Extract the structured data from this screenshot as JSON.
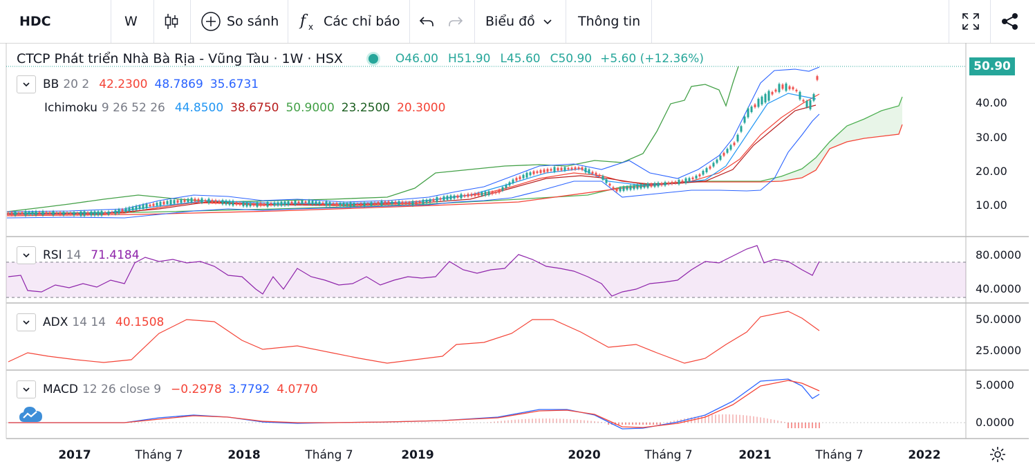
{
  "toolbar": {
    "symbol": "HDC",
    "interval": "W",
    "compare_label": "So sánh",
    "indicators_label": "Các chỉ báo",
    "chart_type_label": "Biểu đồ",
    "info_label": "Thông tin"
  },
  "header": {
    "title": "CTCP Phát triển Nhà Bà Rịa - Vũng Tàu · 1W · HSX",
    "open": "O46.00",
    "high": "H51.90",
    "low": "L45.60",
    "close": "C50.90",
    "change": "+5.60 (+12.36%)",
    "last_price": "50.90"
  },
  "legends": {
    "bb": {
      "name": "BB",
      "params": "20 2",
      "v1": "42.2300",
      "v2": "48.7869",
      "v3": "35.6731"
    },
    "ichimoku": {
      "name": "Ichimoku",
      "params": "9 26 52 26",
      "v1": "44.8500",
      "v2": "38.6750",
      "v3": "50.9000",
      "v4": "23.2500",
      "v5": "20.3000"
    },
    "rsi": {
      "name": "RSI",
      "params": "14",
      "v1": "71.4184"
    },
    "adx": {
      "name": "ADX",
      "params": "14 14",
      "v1": "40.1508"
    },
    "macd": {
      "name": "MACD",
      "params": "12 26 close 9",
      "v1": "−0.2978",
      "v2": "3.7792",
      "v3": "4.0770"
    }
  },
  "axes": {
    "price": [
      "40.00",
      "30.00",
      "20.00",
      "10.00"
    ],
    "rsi": [
      "80.0000",
      "40.0000"
    ],
    "adx": [
      "50.0000",
      "25.0000"
    ],
    "macd": [
      "5.0000",
      "0.0000"
    ],
    "time": [
      "2017",
      "Tháng 7",
      "2018",
      "Tháng 7",
      "2019",
      "2020",
      "Tháng 7",
      "2021",
      "Tháng 7",
      "2022"
    ]
  },
  "colors": {
    "up": "#26a69a",
    "down": "#ef5350",
    "bb": "#2962ff",
    "tenkan": "#2196f3",
    "kijun": "#b71c1c",
    "lagging": "#43a047",
    "span_a": "#4caf50",
    "span_b": "#f44336",
    "rsi": "#8e24aa",
    "adx": "#f44336",
    "macd": "#2962ff",
    "signal": "#f44336"
  }
}
